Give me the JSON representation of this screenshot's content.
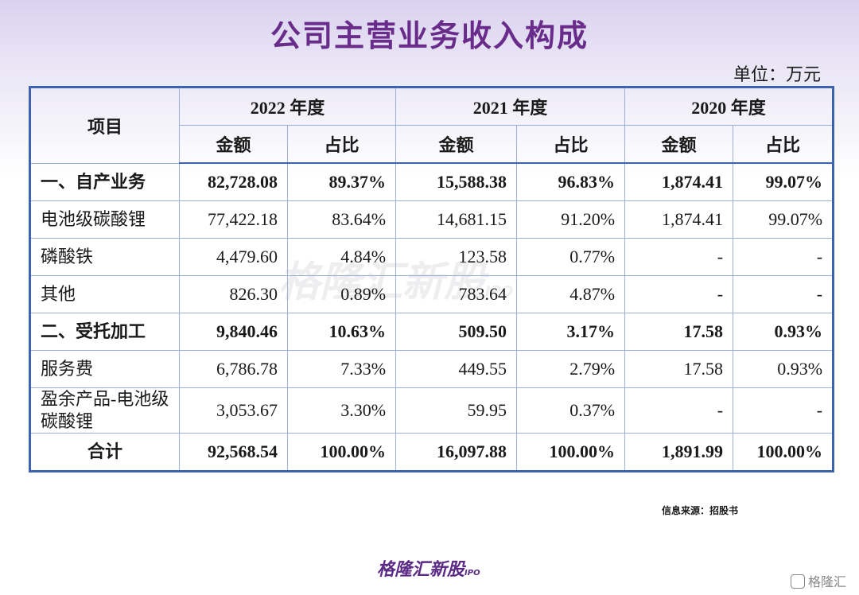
{
  "header": {
    "title": "公司主营业务收入构成",
    "unit": "单位：万元"
  },
  "table": {
    "item_header": "项目",
    "years": [
      "2022 年度",
      "2021 年度",
      "2020 年度"
    ],
    "subheaders": [
      "金额",
      "占比"
    ],
    "rows": [
      {
        "label": "一、自产业务",
        "style": "bold",
        "cells": [
          "82,728.08",
          "89.37%",
          "15,588.38",
          "96.83%",
          "1,874.41",
          "99.07%"
        ]
      },
      {
        "label": "电池级碳酸锂",
        "style": "normal",
        "cells": [
          "77,422.18",
          "83.64%",
          "14,681.15",
          "91.20%",
          "1,874.41",
          "99.07%"
        ]
      },
      {
        "label": "磷酸铁",
        "style": "normal",
        "cells": [
          "4,479.60",
          "4.84%",
          "123.58",
          "0.77%",
          "-",
          "-"
        ]
      },
      {
        "label": "其他",
        "style": "normal",
        "cells": [
          "826.30",
          "0.89%",
          "783.64",
          "4.87%",
          "-",
          "-"
        ]
      },
      {
        "label": "二、受托加工",
        "style": "bold",
        "cells": [
          "9,840.46",
          "10.63%",
          "509.50",
          "3.17%",
          "17.58",
          "0.93%"
        ]
      },
      {
        "label": "服务费",
        "style": "normal",
        "cells": [
          "6,786.78",
          "7.33%",
          "449.55",
          "2.79%",
          "17.58",
          "0.93%"
        ]
      },
      {
        "label": "盈余产品-电池级碳酸锂",
        "style": "normal",
        "cells": [
          "3,053.67",
          "3.30%",
          "59.95",
          "0.37%",
          "-",
          "-"
        ]
      },
      {
        "label": "合计",
        "style": "total",
        "cells": [
          "92,568.54",
          "100.00%",
          "16,097.88",
          "100.00%",
          "1,891.99",
          "100.00%"
        ]
      }
    ]
  },
  "watermark": {
    "name": "格隆汇新股",
    "tag": "IPO"
  },
  "footer": {
    "source": "信息来源：招股书",
    "brand": "格隆汇新股",
    "brand_tag": "IPO",
    "corner": "格隆汇"
  }
}
